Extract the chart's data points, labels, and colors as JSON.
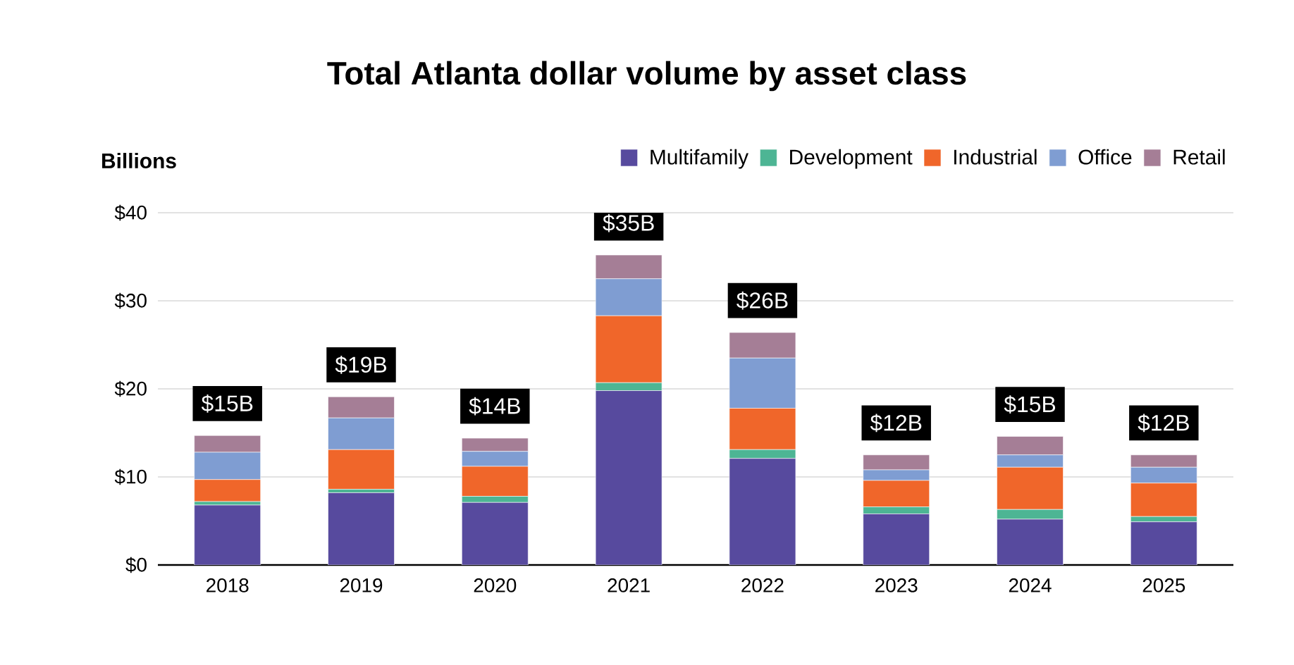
{
  "chart_data": {
    "type": "bar",
    "title": "Total Atlanta dollar volume by asset class",
    "ylabel": "Billions",
    "categories": [
      "2018",
      "2019",
      "2020",
      "2021",
      "2022",
      "2023",
      "2024",
      "2025"
    ],
    "stacked": true,
    "series": [
      {
        "name": "Multifamily",
        "color": "#574a9e",
        "values": [
          6.8,
          8.2,
          7.1,
          19.8,
          12.1,
          5.8,
          5.2,
          4.9
        ]
      },
      {
        "name": "Development",
        "color": "#4db594",
        "values": [
          0.4,
          0.4,
          0.7,
          0.9,
          1.0,
          0.8,
          1.1,
          0.6
        ]
      },
      {
        "name": "Industrial",
        "color": "#f0662a",
        "values": [
          2.5,
          4.5,
          3.4,
          7.6,
          4.7,
          3.0,
          4.8,
          3.8
        ]
      },
      {
        "name": "Office",
        "color": "#7f9dd2",
        "values": [
          3.1,
          3.6,
          1.7,
          4.2,
          5.7,
          1.2,
          1.4,
          1.8
        ]
      },
      {
        "name": "Retail",
        "color": "#a57e96",
        "values": [
          1.9,
          2.4,
          1.5,
          2.7,
          2.9,
          1.7,
          2.1,
          1.4
        ]
      }
    ],
    "totals": [
      "$15B",
      "$19B",
      "$14B",
      "$35B",
      "$26B",
      "$12B",
      "$15B",
      "$12B"
    ],
    "ylim": [
      0,
      40
    ],
    "yticks": [
      {
        "value": 0,
        "label": "$0"
      },
      {
        "value": 10,
        "label": "$10"
      },
      {
        "value": 20,
        "label": "$20"
      },
      {
        "value": 30,
        "label": "$30"
      },
      {
        "value": 40,
        "label": "$40"
      }
    ],
    "grid": "y",
    "legend": "top right"
  }
}
